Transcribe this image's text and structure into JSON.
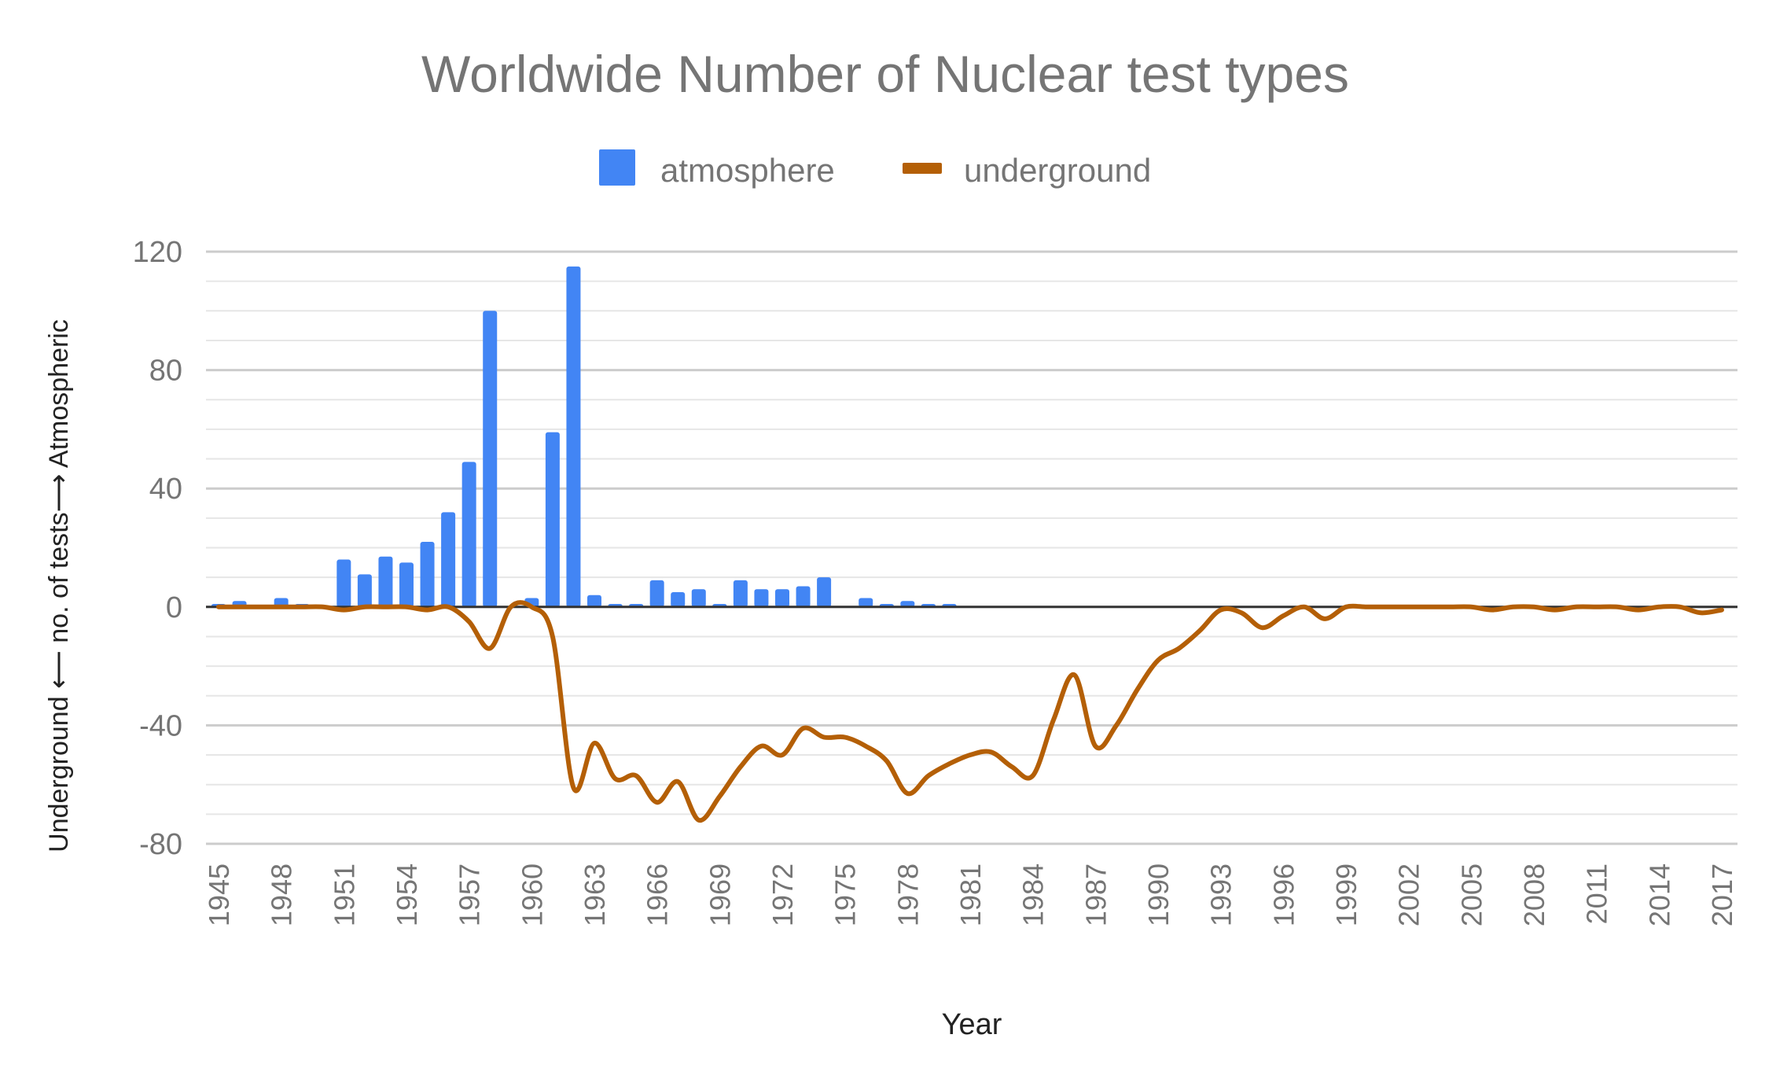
{
  "chart_data": {
    "type": "bar",
    "title": "Worldwide Number of Nuclear test types",
    "xlabel": "Year",
    "ylabel": "Underground ⟵ no. of tests⟶ Atmospheric",
    "ylim": [
      -80,
      120
    ],
    "yticks": [
      "120",
      "80",
      "40",
      "0",
      "-40",
      "-80"
    ],
    "x_tick_labels": [
      "1945",
      "1948",
      "1951",
      "1954",
      "1957",
      "1960",
      "1963",
      "1966",
      "1969",
      "1972",
      "1975",
      "1978",
      "1981",
      "1984",
      "1987",
      "1990",
      "1993",
      "1996",
      "1999",
      "2002",
      "2005",
      "2008",
      "2011",
      "2014",
      "2017"
    ],
    "legend_position": "top",
    "grid": true,
    "x": [
      1945,
      1946,
      1947,
      1948,
      1949,
      1950,
      1951,
      1952,
      1953,
      1954,
      1955,
      1956,
      1957,
      1958,
      1959,
      1960,
      1961,
      1962,
      1963,
      1964,
      1965,
      1966,
      1967,
      1968,
      1969,
      1970,
      1971,
      1972,
      1973,
      1974,
      1975,
      1976,
      1977,
      1978,
      1979,
      1980,
      1981,
      1982,
      1983,
      1984,
      1985,
      1986,
      1987,
      1988,
      1989,
      1990,
      1991,
      1992,
      1993,
      1994,
      1995,
      1996,
      1997,
      1998,
      1999,
      2000,
      2001,
      2002,
      2003,
      2004,
      2005,
      2006,
      2007,
      2008,
      2009,
      2010,
      2011,
      2012,
      2013,
      2014,
      2015,
      2016,
      2017
    ],
    "series": [
      {
        "name": "atmosphere",
        "type": "bar",
        "color": "#4285f4",
        "values": [
          1,
          2,
          0,
          3,
          1,
          0,
          16,
          11,
          17,
          15,
          22,
          32,
          49,
          100,
          0,
          3,
          59,
          115,
          4,
          1,
          1,
          9,
          5,
          6,
          1,
          9,
          6,
          6,
          7,
          10,
          0,
          3,
          1,
          2,
          1,
          1,
          0,
          0,
          0,
          0,
          0,
          0,
          0,
          0,
          0,
          0,
          0,
          0,
          0,
          0,
          0,
          0,
          0,
          0,
          0,
          0,
          0,
          0,
          0,
          0,
          0,
          0,
          0,
          0,
          0,
          0,
          0,
          0,
          0,
          0,
          0,
          0,
          0
        ]
      },
      {
        "name": "underground",
        "type": "line",
        "color": "#b45f06",
        "values": [
          0,
          0,
          0,
          0,
          0,
          0,
          -1,
          0,
          0,
          0,
          -1,
          0,
          -5,
          -14,
          0,
          0,
          -10,
          -61,
          -46,
          -58,
          -57,
          -66,
          -59,
          -72,
          -64,
          -54,
          -47,
          -50,
          -41,
          -44,
          -44,
          -47,
          -52,
          -63,
          -57,
          -53,
          -50,
          -49,
          -54,
          -57,
          -38,
          -23,
          -47,
          -40,
          -28,
          -18,
          -14,
          -8,
          -1,
          -2,
          -7,
          -3,
          0,
          -4,
          0,
          0,
          0,
          0,
          0,
          0,
          0,
          -1,
          0,
          0,
          -1,
          0,
          0,
          0,
          -1,
          0,
          0,
          -2,
          -1
        ]
      }
    ]
  }
}
